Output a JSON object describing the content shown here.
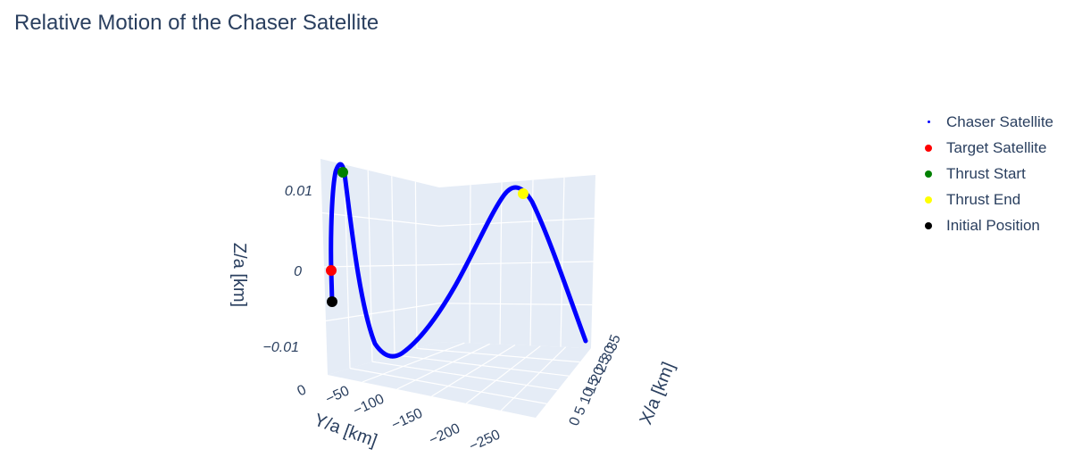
{
  "colors": {
    "pane": "#e5ecf6",
    "grid": "#ffffff",
    "text": "#2a3f5f",
    "chaser": "#0000ff",
    "target": "#ff0000",
    "thrust_start": "#008000",
    "thrust_end": "#ffff00",
    "initial": "#000000"
  },
  "chart_data": {
    "type": "scatter3d",
    "title": "Relative Motion of the Chaser Satellite",
    "axes": {
      "x": {
        "label": "X/a [km]",
        "ticks": [
          "0",
          "5",
          "10",
          "15",
          "20",
          "25",
          "30",
          "35"
        ]
      },
      "y": {
        "label": "Y/a [km]",
        "ticks": [
          "0",
          "−50",
          "−100",
          "−150",
          "−200",
          "−250"
        ]
      },
      "z": {
        "label": "Z/a [km]",
        "ticks": [
          "0.01",
          "0",
          "−0.01"
        ]
      }
    },
    "series": [
      {
        "name": "Chaser Satellite",
        "mode": "markers",
        "marker": "small",
        "color": "#0000ff"
      },
      {
        "name": "Target Satellite",
        "mode": "markers",
        "marker": "big",
        "color": "#ff0000"
      },
      {
        "name": "Thrust Start",
        "mode": "markers",
        "marker": "big",
        "color": "#008000"
      },
      {
        "name": "Thrust End",
        "mode": "markers",
        "marker": "big",
        "color": "#ffff00"
      },
      {
        "name": "Initial Position",
        "mode": "markers",
        "marker": "big",
        "color": "#000000"
      }
    ],
    "legend_position": "top-right"
  }
}
